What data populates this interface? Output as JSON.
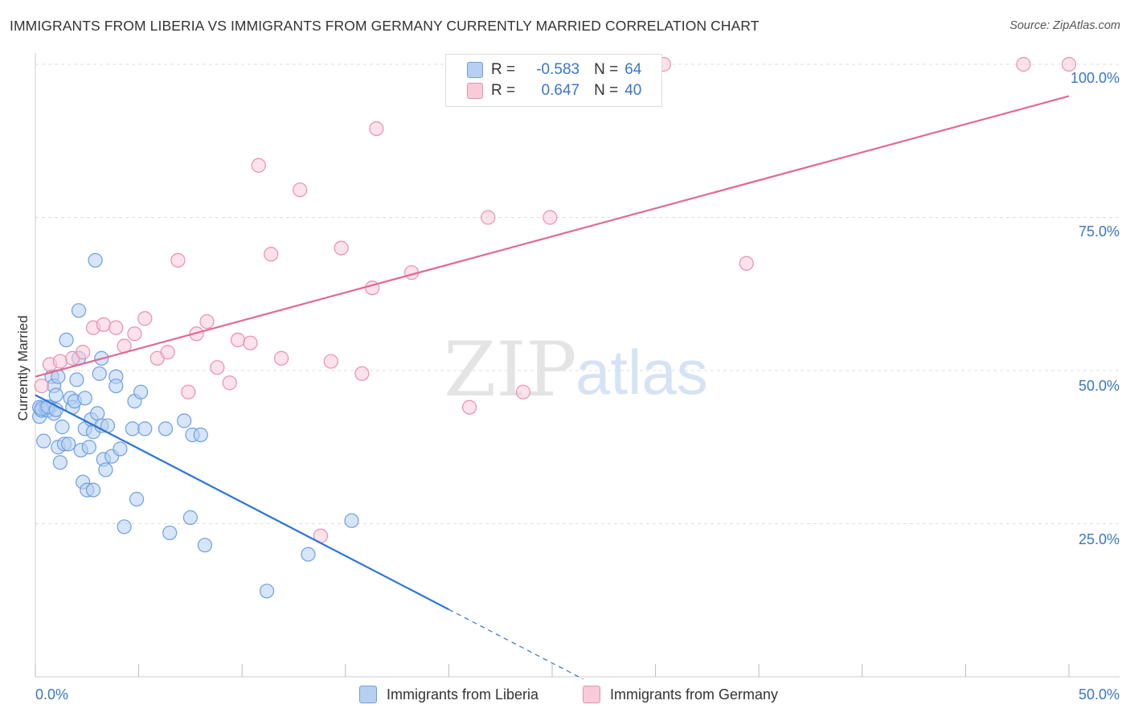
{
  "title": "IMMIGRANTS FROM LIBERIA VS IMMIGRANTS FROM GERMANY CURRENTLY MARRIED CORRELATION CHART",
  "source": "Source: ZipAtlas.com",
  "watermark": {
    "zip": "ZIP",
    "atlas": "atlas"
  },
  "legend": {
    "rows": [
      {
        "r_label": "R =",
        "r_value": "-0.583",
        "n_label": "N =",
        "n_value": "64"
      },
      {
        "r_label": "R =",
        "r_value": "0.647",
        "n_label": "N =",
        "n_value": "40"
      }
    ]
  },
  "bottom_legend": {
    "liberia": "Immigrants from Liberia",
    "germany": "Immigrants from Germany"
  },
  "colors": {
    "blue_fill": "#b6d0f2",
    "blue_stroke": "#6d9fe0",
    "blue_line": "#2b74d6",
    "pink_fill": "#f9cbd9",
    "pink_stroke": "#e98fad",
    "pink_line": "#e06a93",
    "tick_text": "#3a76c9",
    "grid": "#dddddd"
  },
  "chart_data": {
    "type": "scatter",
    "title": "IMMIGRANTS FROM LIBERIA VS IMMIGRANTS FROM GERMANY CURRENTLY MARRIED CORRELATION CHART",
    "xlabel": "",
    "ylabel": "Currently Married",
    "xlim": [
      0,
      50
    ],
    "ylim": [
      0,
      100
    ],
    "x_tick_labels": [
      "0.0%",
      "50.0%"
    ],
    "y_tick_labels": [
      "25.0%",
      "50.0%",
      "75.0%",
      "100.0%"
    ],
    "y_ticks": [
      25,
      50,
      75,
      100
    ],
    "x_ticks": [
      0,
      5,
      10,
      15,
      20,
      25,
      30,
      35,
      40,
      45,
      50
    ],
    "series": [
      {
        "name": "Immigrants from Liberia",
        "r": -0.583,
        "n": 64,
        "trend": {
          "x0": 0,
          "y0": 46.0,
          "x1": 20.0,
          "y1": 11.0,
          "dash_to_x": 26.5
        },
        "points": [
          [
            0.2,
            44.0
          ],
          [
            0.2,
            42.5
          ],
          [
            0.3,
            43.5
          ],
          [
            0.4,
            38.5
          ],
          [
            0.5,
            43.8
          ],
          [
            0.6,
            43.5
          ],
          [
            0.7,
            44.0
          ],
          [
            0.8,
            49.0
          ],
          [
            0.9,
            47.5
          ],
          [
            0.9,
            43.0
          ],
          [
            1.0,
            46.0
          ],
          [
            1.1,
            49.0
          ],
          [
            1.1,
            37.5
          ],
          [
            1.2,
            35.0
          ],
          [
            1.3,
            40.8
          ],
          [
            1.4,
            38.0
          ],
          [
            1.5,
            55.0
          ],
          [
            1.6,
            38.0
          ],
          [
            1.7,
            45.5
          ],
          [
            1.8,
            44.0
          ],
          [
            1.9,
            45.0
          ],
          [
            2.0,
            48.5
          ],
          [
            2.1,
            52.0
          ],
          [
            2.1,
            59.8
          ],
          [
            2.2,
            37.0
          ],
          [
            2.3,
            31.8
          ],
          [
            2.4,
            40.5
          ],
          [
            2.4,
            45.5
          ],
          [
            2.5,
            30.5
          ],
          [
            2.6,
            37.5
          ],
          [
            2.7,
            42.0
          ],
          [
            2.8,
            30.5
          ],
          [
            2.8,
            40.0
          ],
          [
            2.9,
            68.0
          ],
          [
            3.0,
            43.0
          ],
          [
            3.1,
            49.5
          ],
          [
            3.2,
            52.0
          ],
          [
            3.2,
            41.0
          ],
          [
            3.3,
            35.5
          ],
          [
            3.4,
            33.8
          ],
          [
            3.5,
            41.0
          ],
          [
            3.7,
            36.0
          ],
          [
            3.9,
            49.0
          ],
          [
            3.9,
            47.5
          ],
          [
            4.1,
            37.2
          ],
          [
            4.3,
            24.5
          ],
          [
            4.7,
            40.5
          ],
          [
            4.8,
            45.0
          ],
          [
            4.9,
            29.0
          ],
          [
            5.1,
            46.5
          ],
          [
            5.3,
            40.5
          ],
          [
            6.3,
            40.5
          ],
          [
            6.5,
            23.5
          ],
          [
            7.2,
            41.8
          ],
          [
            7.5,
            26.0
          ],
          [
            7.6,
            39.5
          ],
          [
            8.0,
            39.5
          ],
          [
            8.2,
            21.5
          ],
          [
            11.2,
            14.0
          ],
          [
            13.2,
            20.0
          ],
          [
            15.3,
            25.5
          ],
          [
            0.3,
            43.8
          ],
          [
            0.6,
            44.1
          ],
          [
            1.0,
            43.6
          ]
        ]
      },
      {
        "name": "Immigrants from Germany",
        "r": 0.647,
        "n": 40,
        "trend": {
          "x0": 0,
          "y0": 49.0,
          "x1": 50.0,
          "y1": 94.8
        },
        "points": [
          [
            0.3,
            47.5
          ],
          [
            0.7,
            51.0
          ],
          [
            1.2,
            51.5
          ],
          [
            1.8,
            52.0
          ],
          [
            2.3,
            53.0
          ],
          [
            2.8,
            57.0
          ],
          [
            3.3,
            57.5
          ],
          [
            3.9,
            57.0
          ],
          [
            4.3,
            54.0
          ],
          [
            4.8,
            56.0
          ],
          [
            5.3,
            58.5
          ],
          [
            5.9,
            52.0
          ],
          [
            6.4,
            53.0
          ],
          [
            6.9,
            68.0
          ],
          [
            7.4,
            46.5
          ],
          [
            7.8,
            56.0
          ],
          [
            8.3,
            58.0
          ],
          [
            8.8,
            50.5
          ],
          [
            9.4,
            48.0
          ],
          [
            9.8,
            55.0
          ],
          [
            10.4,
            54.5
          ],
          [
            10.8,
            83.5
          ],
          [
            11.4,
            69.0
          ],
          [
            11.9,
            52.0
          ],
          [
            12.8,
            79.5
          ],
          [
            13.8,
            23.0
          ],
          [
            14.3,
            51.5
          ],
          [
            14.8,
            70.0
          ],
          [
            15.8,
            49.5
          ],
          [
            16.3,
            63.5
          ],
          [
            16.5,
            89.5
          ],
          [
            18.2,
            66.0
          ],
          [
            21.0,
            44.0
          ],
          [
            21.9,
            75.0
          ],
          [
            23.6,
            46.5
          ],
          [
            24.9,
            75.0
          ],
          [
            30.4,
            100.0
          ],
          [
            34.4,
            67.5
          ],
          [
            47.8,
            100.0
          ],
          [
            50.0,
            100.0
          ]
        ]
      }
    ]
  }
}
